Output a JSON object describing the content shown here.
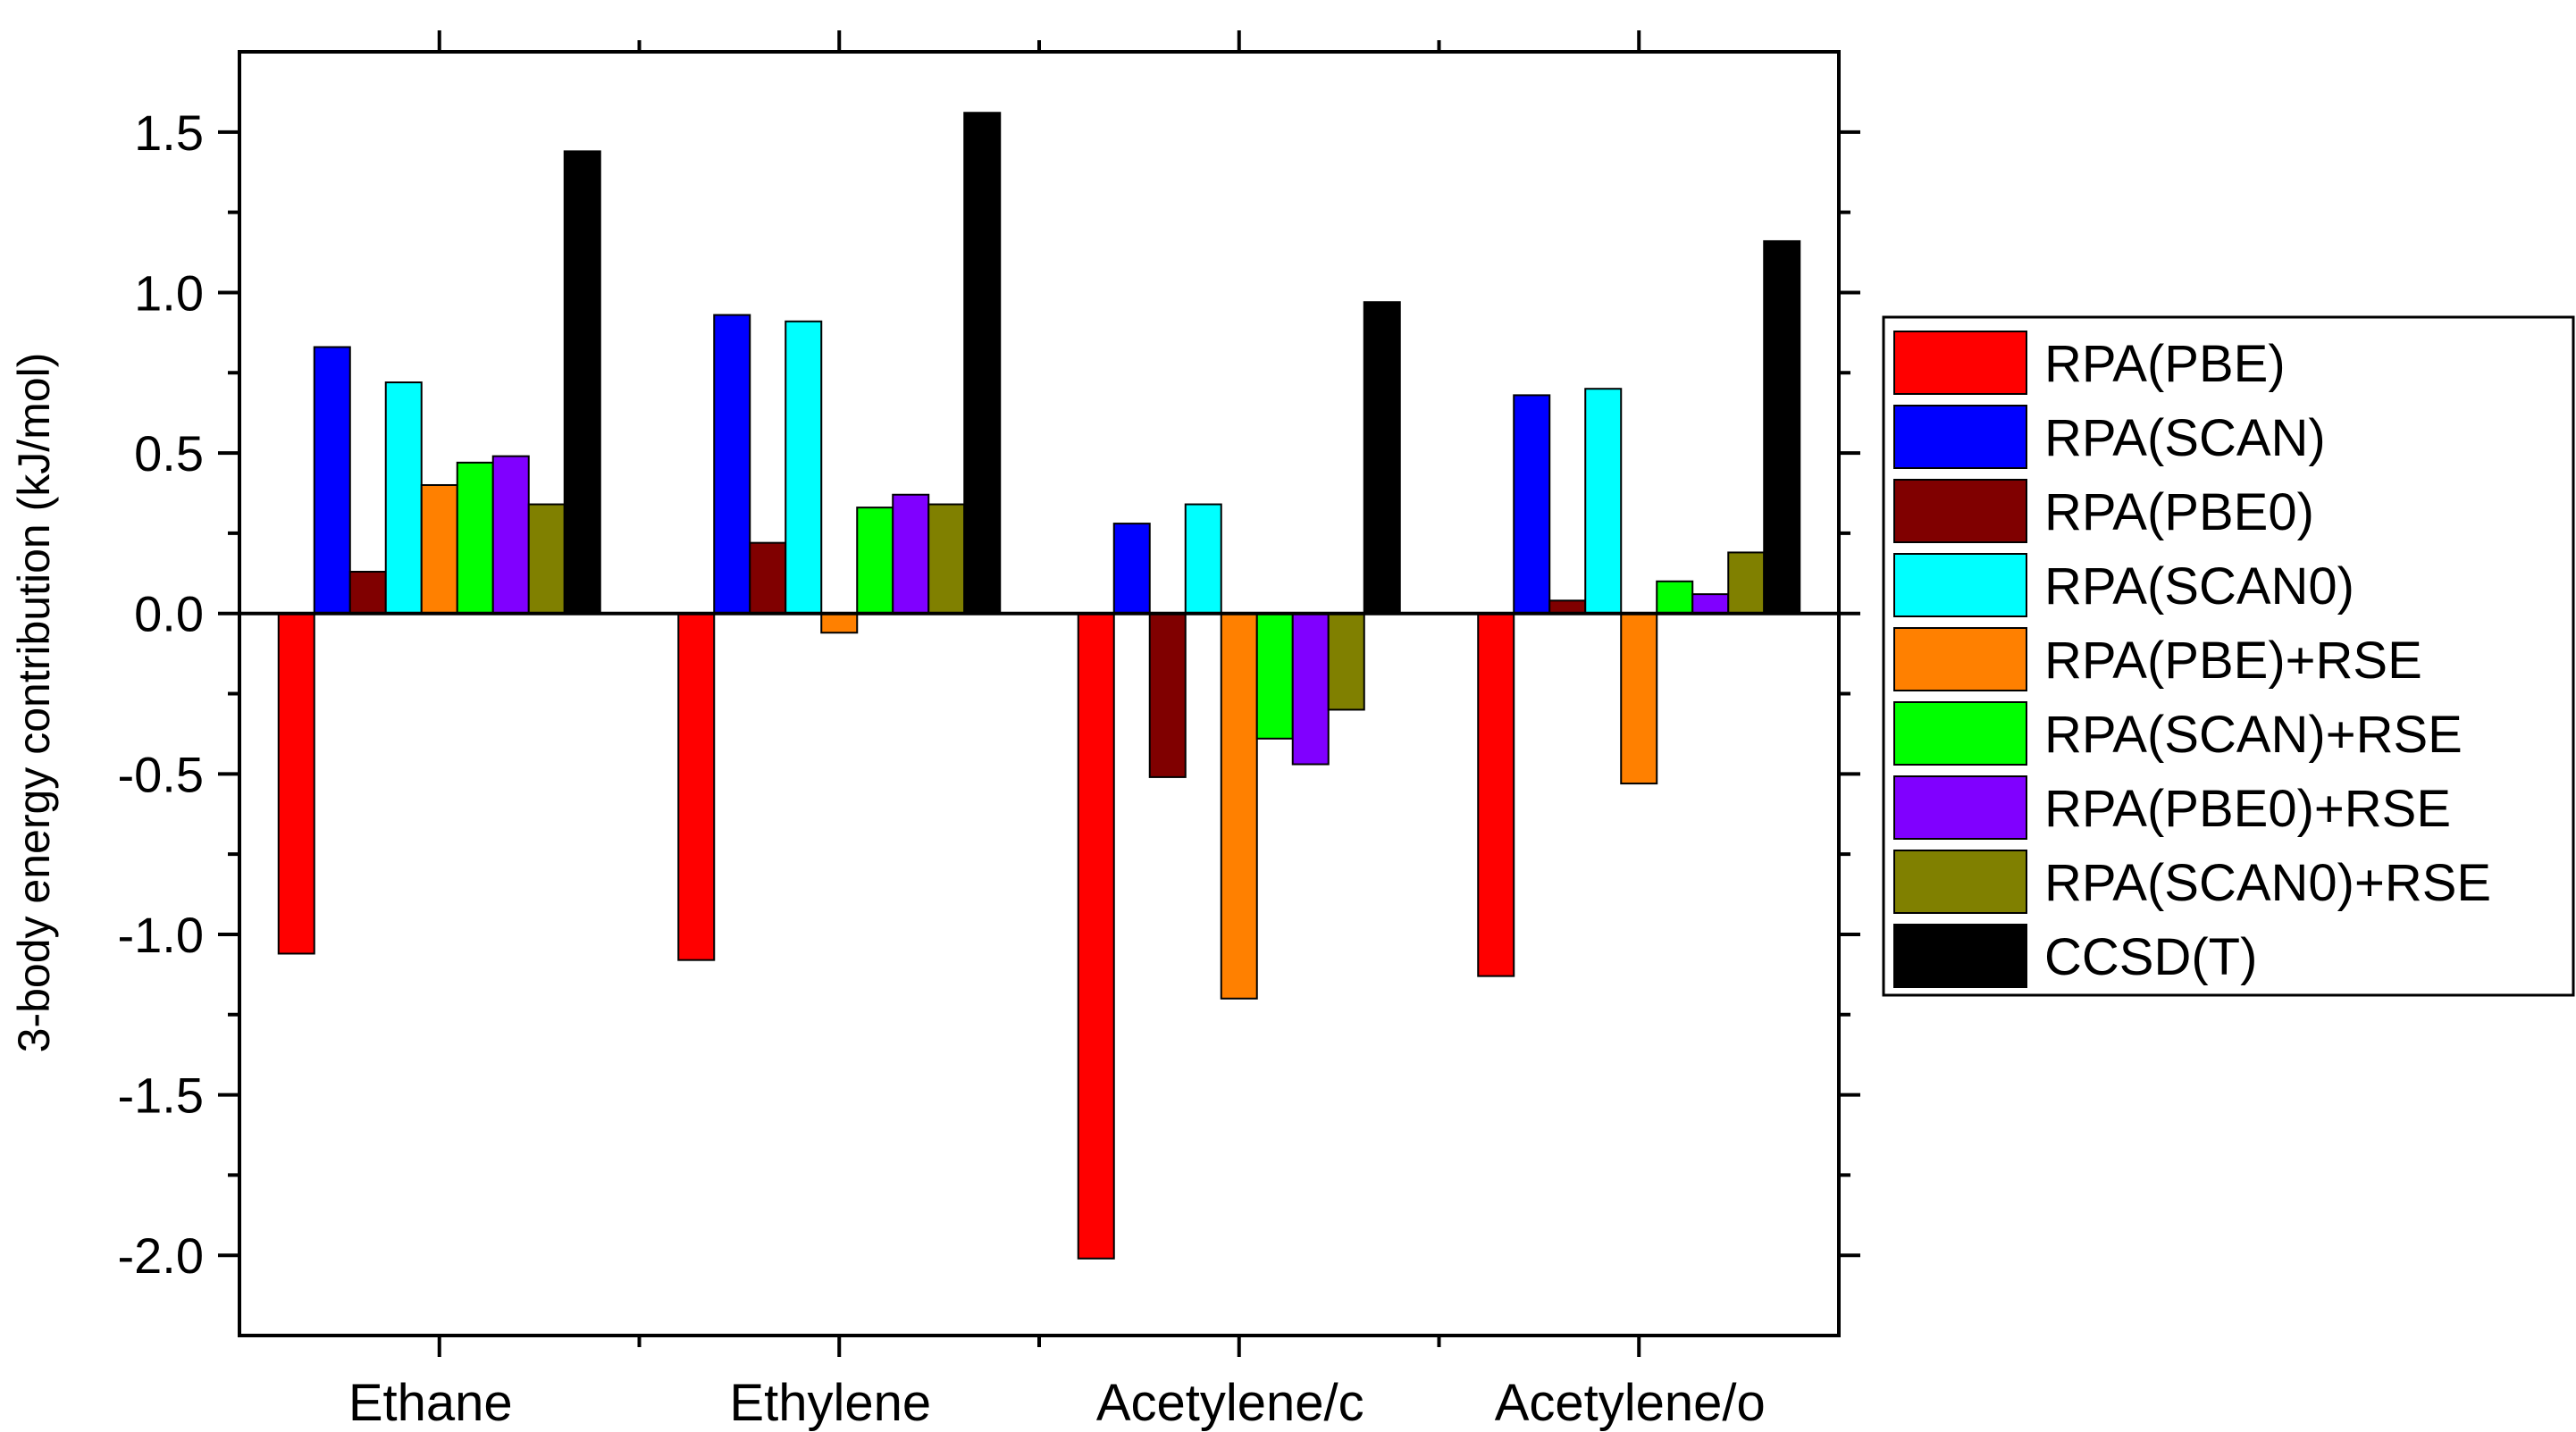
{
  "chart_data": {
    "type": "bar",
    "categories": [
      "Ethane",
      "Ethylene",
      "Acetylene/c",
      "Acetylene/o"
    ],
    "series": [
      {
        "name": "RPA(PBE)",
        "color": "#ff0000",
        "values": [
          -1.06,
          -1.08,
          -2.01,
          -1.13
        ]
      },
      {
        "name": "RPA(SCAN)",
        "color": "#0000ff",
        "values": [
          0.83,
          0.93,
          0.28,
          0.68
        ]
      },
      {
        "name": "RPA(PBE0)",
        "color": "#800000",
        "values": [
          0.13,
          0.22,
          -0.51,
          0.04
        ]
      },
      {
        "name": "RPA(SCAN0)",
        "color": "#00ffff",
        "values": [
          0.72,
          0.91,
          0.34,
          0.7
        ]
      },
      {
        "name": "RPA(PBE)+RSE",
        "color": "#ff8000",
        "values": [
          0.4,
          -0.06,
          -1.2,
          -0.53
        ]
      },
      {
        "name": "RPA(SCAN)+RSE",
        "color": "#00ff00",
        "values": [
          0.47,
          0.33,
          -0.39,
          0.1
        ]
      },
      {
        "name": "RPA(PBE0)+RSE",
        "color": "#8000ff",
        "values": [
          0.49,
          0.37,
          -0.47,
          0.06
        ]
      },
      {
        "name": "RPA(SCAN0)+RSE",
        "color": "#808000",
        "values": [
          0.34,
          0.34,
          -0.3,
          0.19
        ]
      },
      {
        "name": "CCSD(T)",
        "color": "#000000",
        "values": [
          1.44,
          1.56,
          0.97,
          1.16
        ]
      }
    ],
    "title": "",
    "xlabel": "",
    "ylabel": "3-body energy contribution (kJ/mol)",
    "ylim": [
      -2.25,
      1.75
    ],
    "yticks": [
      -2.0,
      -1.5,
      -1.0,
      -0.5,
      0.0,
      0.5,
      1.0,
      1.5
    ],
    "ytick_labels": [
      "-2.0",
      "-1.5",
      "-1.0",
      "-0.5",
      "0.0",
      "0.5",
      "1.0",
      "1.5"
    ],
    "grid": false,
    "legend_position": "right"
  }
}
